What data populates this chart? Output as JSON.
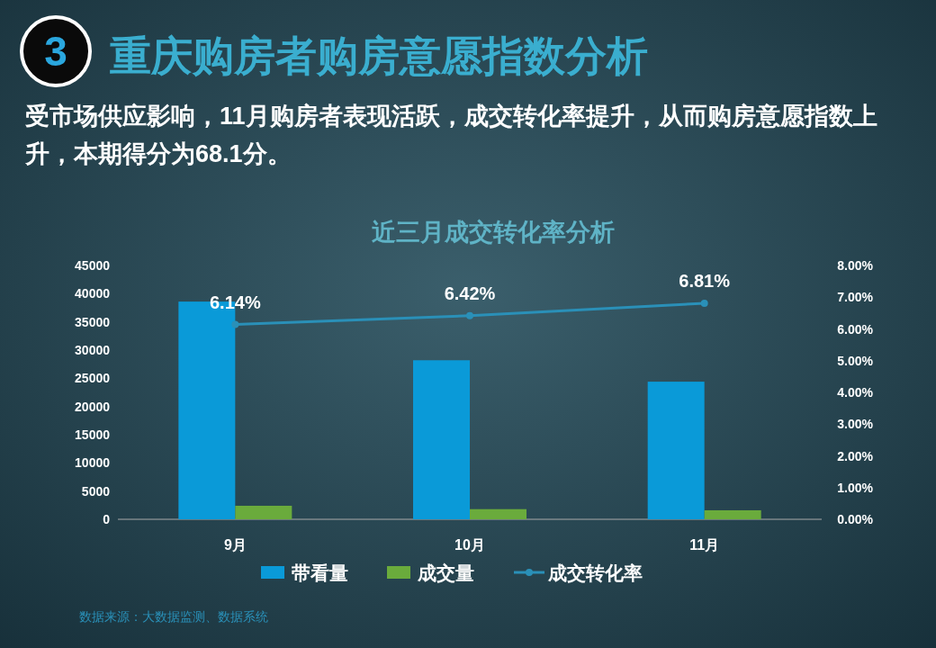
{
  "chart_data": {
    "type": "bar",
    "title": "重庆购房者购房意愿指数分析",
    "subtitle": "受市场供应影响，11月购房者表现活跃，成交转化率提升，从而购房意愿指数上升，本期得分为68.1分。",
    "annotations": [
      "3",
      "近三月成交转化率分析",
      "数据来源：大数据监测、数据系统"
    ],
    "categories": [
      "9月",
      "10月",
      "11月"
    ],
    "series": [
      {
        "name": "带看量",
        "color": "#0a9ad8",
        "values": [
          38600,
          28200,
          24400
        ]
      },
      {
        "name": "成交量",
        "color": "#6aab3c",
        "values": [
          2400,
          1800,
          1600
        ]
      },
      {
        "name": "成交转化率",
        "type": "line",
        "axis": "y2",
        "color": "#2a90b8",
        "values": [
          6.14,
          6.42,
          6.81
        ],
        "value_labels": [
          "6.14%",
          "6.42%",
          "6.81%"
        ],
        "marker": "circle"
      }
    ],
    "ylim": [
      0,
      45000
    ],
    "yticks": [
      0,
      5000,
      10000,
      15000,
      20000,
      25000,
      30000,
      35000,
      40000,
      45000
    ],
    "y2lim": [
      0,
      8
    ],
    "y2ticks": [
      {
        "value": 0,
        "label": "0.00%"
      },
      {
        "value": 1,
        "label": "1.00%"
      },
      {
        "value": 2,
        "label": "2.00%"
      },
      {
        "value": 3,
        "label": "3.00%"
      },
      {
        "value": 4,
        "label": "4.00%"
      },
      {
        "value": 5,
        "label": "5.00%"
      },
      {
        "value": 6,
        "label": "6.00%"
      },
      {
        "value": 7,
        "label": "7.00%"
      },
      {
        "value": 8,
        "label": "8.00%"
      }
    ],
    "legend": "bottom",
    "grid": false
  }
}
